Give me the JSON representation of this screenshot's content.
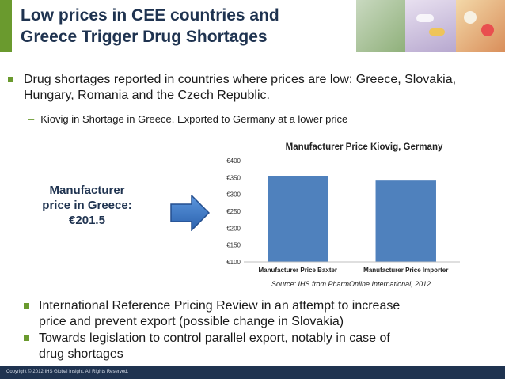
{
  "title": {
    "line1": "Low prices in CEE countries and",
    "line2": "Greece Trigger Drug Shortages"
  },
  "bullets": {
    "b1_line1": "Drug shortages reported in countries where prices are low: Greece, Slovakia,",
    "b1_line2": "Hungary, Romania and the Czech Republic.",
    "sub1": "Kiovig in Shortage in Greece. Exported to Germany at a lower price",
    "b2_line1": "International Reference Pricing Review in an attempt to increase",
    "b2_line2": "price and prevent export (possible change in Slovakia)",
    "b3_line1": "Towards legislation to control parallel export, notably in case of",
    "b3_line2": "drug shortages"
  },
  "callout": {
    "line1": "Manufacturer",
    "line2": "price in Greece:",
    "line3": "€201.5"
  },
  "chart_data": {
    "type": "bar",
    "title": "Manufacturer Price Kiovig, Germany",
    "categories": [
      "Manufacturer Price Baxter",
      "Manufacturer Price Importer"
    ],
    "values": [
      354,
      341
    ],
    "ylim": [
      100,
      400
    ],
    "yticks": [
      "€100",
      "€150",
      "€200",
      "€250",
      "€300",
      "€350",
      "€400"
    ],
    "ytick_values": [
      100,
      150,
      200,
      250,
      300,
      350,
      400
    ],
    "bar_color": "#4f81bd",
    "grid": false
  },
  "source": "Source: IHS from PharmOnline International, 2012.",
  "footer": "Copyright © 2012 IHS Global Insight. All Rights Reserved.",
  "colors": {
    "accent_green": "#6a9a2e",
    "title_navy": "#1f3350",
    "arrow_blue": "#3b76c6"
  }
}
